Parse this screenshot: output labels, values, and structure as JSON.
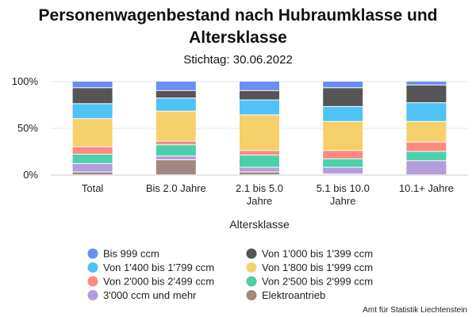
{
  "chart_data": {
    "type": "bar",
    "stacked": true,
    "title": "Personenwagenbestand nach Hubraumklasse und Altersklasse",
    "subtitle": "Stichtag: 30.06.2022",
    "xlabel": "Altersklasse",
    "ylabel": "",
    "ylim": [
      0,
      100
    ],
    "yticks": [
      "0%",
      "50%",
      "100%"
    ],
    "grid": true,
    "legend_position": "bottom",
    "categories": [
      "Total",
      "Bis 2.0 Jahre",
      "2.1 bis 5.0 Jahre",
      "5.1 bis 10.0 Jahre",
      "10.1+ Jahre"
    ],
    "series": [
      {
        "name": "Elektroantrieb",
        "color": "#a1887f",
        "values": [
          3,
          16,
          3,
          1,
          0
        ]
      },
      {
        "name": "3'000 ccm und mehr",
        "color": "#b39ddb",
        "values": [
          9,
          4,
          5,
          7,
          15
        ]
      },
      {
        "name": "Von 2'500 bis 2'999 ccm",
        "color": "#4dd0a8",
        "values": [
          10,
          12,
          13,
          9,
          10
        ]
      },
      {
        "name": "Von 2'000 bis 2'499 ccm",
        "color": "#ff8a80",
        "values": [
          8,
          4,
          5,
          9,
          10
        ]
      },
      {
        "name": "Von 1'800 bis 1'999 ccm",
        "color": "#f5d06b",
        "values": [
          30,
          32,
          38,
          31,
          22
        ]
      },
      {
        "name": "Von 1'400 bis 1'799 ccm",
        "color": "#4fc3f7",
        "values": [
          16,
          14,
          16,
          16,
          20
        ]
      },
      {
        "name": "Von 1'000 bis 1'399 ccm",
        "color": "#555555",
        "values": [
          17,
          8,
          10,
          20,
          19
        ]
      },
      {
        "name": "Bis 999 ccm",
        "color": "#6b8ef5",
        "values": [
          7,
          10,
          10,
          7,
          4
        ]
      }
    ]
  },
  "legend_order": [
    "Bis 999 ccm",
    "Von 1'000 bis 1'399 ccm",
    "Von 1'400 bis 1'799 ccm",
    "Von 1'800 bis 1'999 ccm",
    "Von 2'000 bis 2'499 ccm",
    "Von 2'500 bis 2'999 ccm",
    "3'000 ccm und mehr",
    "Elektroantrieb"
  ],
  "source": "Amt für Statistik Liechtenstein"
}
